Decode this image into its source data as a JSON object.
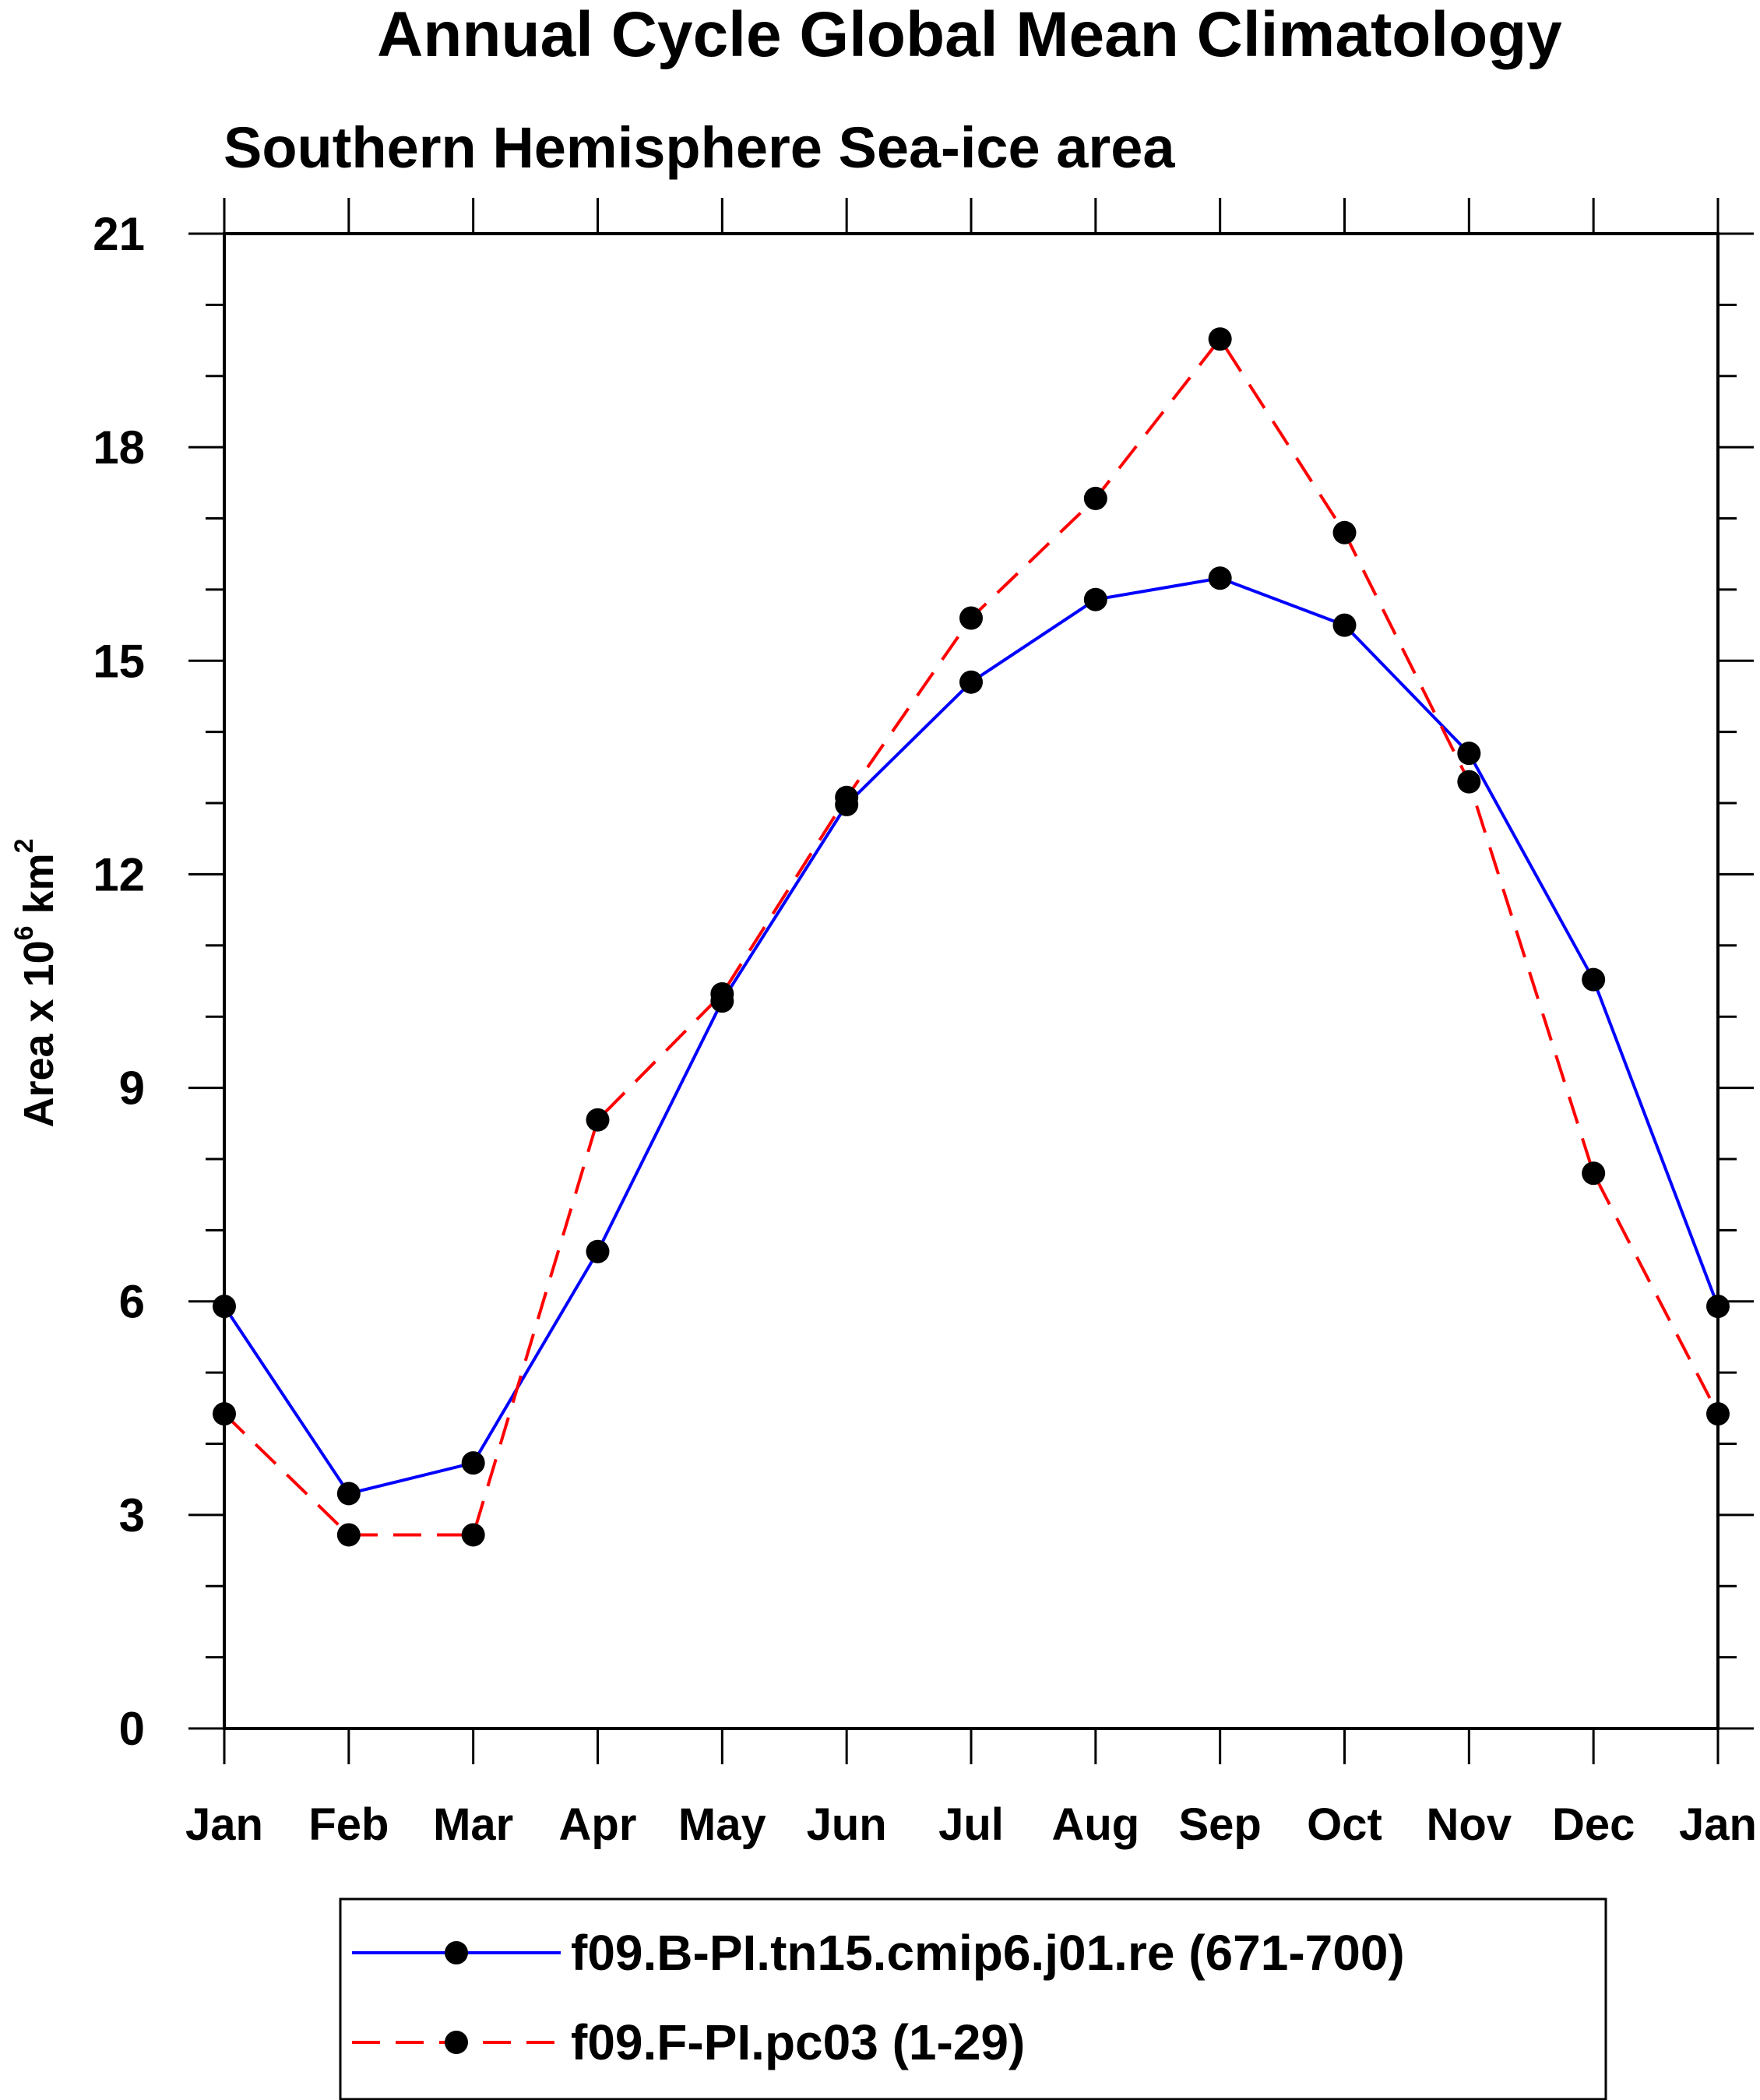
{
  "chart_data": {
    "type": "line",
    "title": "Annual Cycle Global Mean Climatology",
    "subtitle": "Southern Hemisphere Sea-ice area",
    "ylabel_parts": {
      "base": "Area x 10",
      "exp1": "6",
      "unit": " km",
      "exp2": "2"
    },
    "categories": [
      "Jan",
      "Feb",
      "Mar",
      "Apr",
      "May",
      "Jun",
      "Jul",
      "Aug",
      "Sep",
      "Oct",
      "Nov",
      "Dec",
      "Jan"
    ],
    "ylim": [
      0,
      21
    ],
    "yticks": [
      0,
      3,
      6,
      9,
      12,
      15,
      18,
      21
    ],
    "series": [
      {
        "name": "f09.B-PI.tn15.cmip6.j01.re (671-700)",
        "color": "#0000ff",
        "dash": "solid",
        "values": [
          5.93,
          3.3,
          3.73,
          6.7,
          10.22,
          12.98,
          14.7,
          15.86,
          16.16,
          15.5,
          13.7,
          10.52,
          5.93
        ]
      },
      {
        "name": "f09.F-PI.pc03 (1-29)",
        "color": "#ff0000",
        "dash": "dashed",
        "values": [
          4.42,
          2.72,
          2.72,
          8.55,
          10.32,
          13.08,
          15.6,
          17.28,
          19.52,
          16.8,
          13.3,
          7.8,
          4.42
        ]
      }
    ],
    "legend_position": "bottom"
  }
}
